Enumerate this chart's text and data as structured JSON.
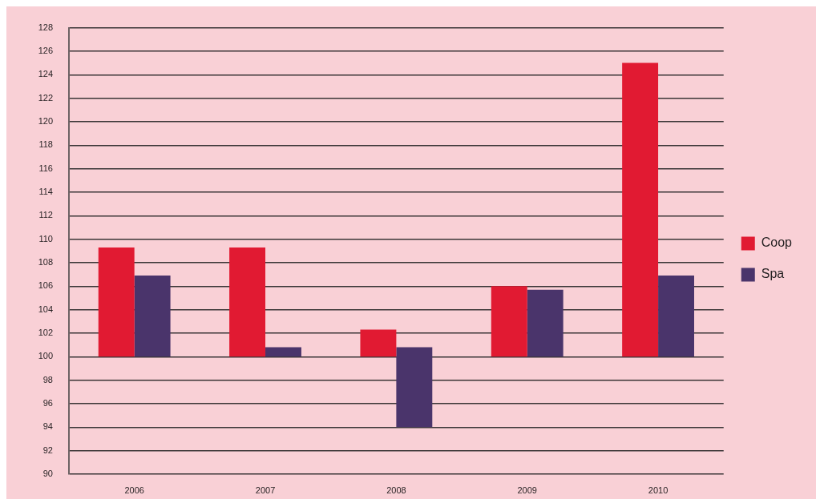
{
  "chart_data": {
    "type": "bar",
    "categories": [
      "2006",
      "2007",
      "2008",
      "2009",
      "2010"
    ],
    "series": [
      {
        "name": "Coop",
        "color": "#e11a32",
        "base": [
          100,
          100,
          100,
          100,
          100
        ],
        "values": [
          9.3,
          9.3,
          2.3,
          6.0,
          25.0
        ]
      },
      {
        "name": "Spa",
        "color": "#4a346b",
        "base": [
          100,
          100,
          94,
          100,
          100
        ],
        "values": [
          6.9,
          0.8,
          6.8,
          5.7,
          6.9
        ]
      }
    ],
    "ylim": [
      90,
      128
    ],
    "yticks": [
      90,
      92,
      94,
      96,
      98,
      100,
      102,
      104,
      106,
      108,
      110,
      112,
      114,
      116,
      118,
      120,
      122,
      124,
      126,
      128
    ],
    "grid": "y",
    "legend": "right"
  }
}
